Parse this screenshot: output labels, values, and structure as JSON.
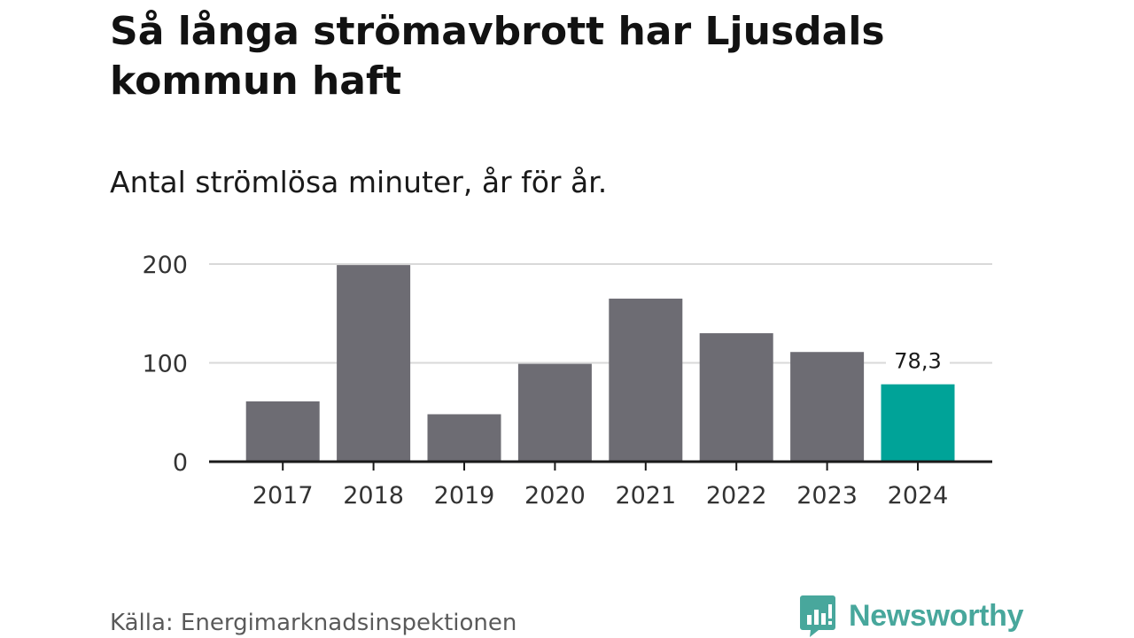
{
  "title": "Så långa strömavbrott har Ljusdals kommun haft",
  "subtitle": "Antal strömlösa minuter, år för år.",
  "source": "Källa: Energimarknadsinspektionen",
  "brand": {
    "name": "Newsworthy",
    "icon": "newsworthy-logo-icon",
    "color": "#48a79c"
  },
  "colors": {
    "bar": "#6d6c73",
    "highlight": "#00a398",
    "grid": "#d9d9d9",
    "axis": "#1a1a1a"
  },
  "chart_data": {
    "type": "bar",
    "title": "Så långa strömavbrott har Ljusdals kommun haft",
    "subtitle": "Antal strömlösa minuter, år för år.",
    "xlabel": "",
    "ylabel": "",
    "categories": [
      "2017",
      "2018",
      "2019",
      "2020",
      "2021",
      "2022",
      "2023",
      "2024"
    ],
    "values": [
      61,
      199,
      48,
      99,
      165,
      130,
      111,
      78.3
    ],
    "highlight_index": 7,
    "ylim": [
      0,
      200
    ],
    "yticks": [
      0,
      100,
      200
    ],
    "ytick_labels": [
      "0",
      "100",
      "200"
    ],
    "data_labels": [
      {
        "index": 7,
        "text": "78,3"
      }
    ],
    "grid": true
  }
}
